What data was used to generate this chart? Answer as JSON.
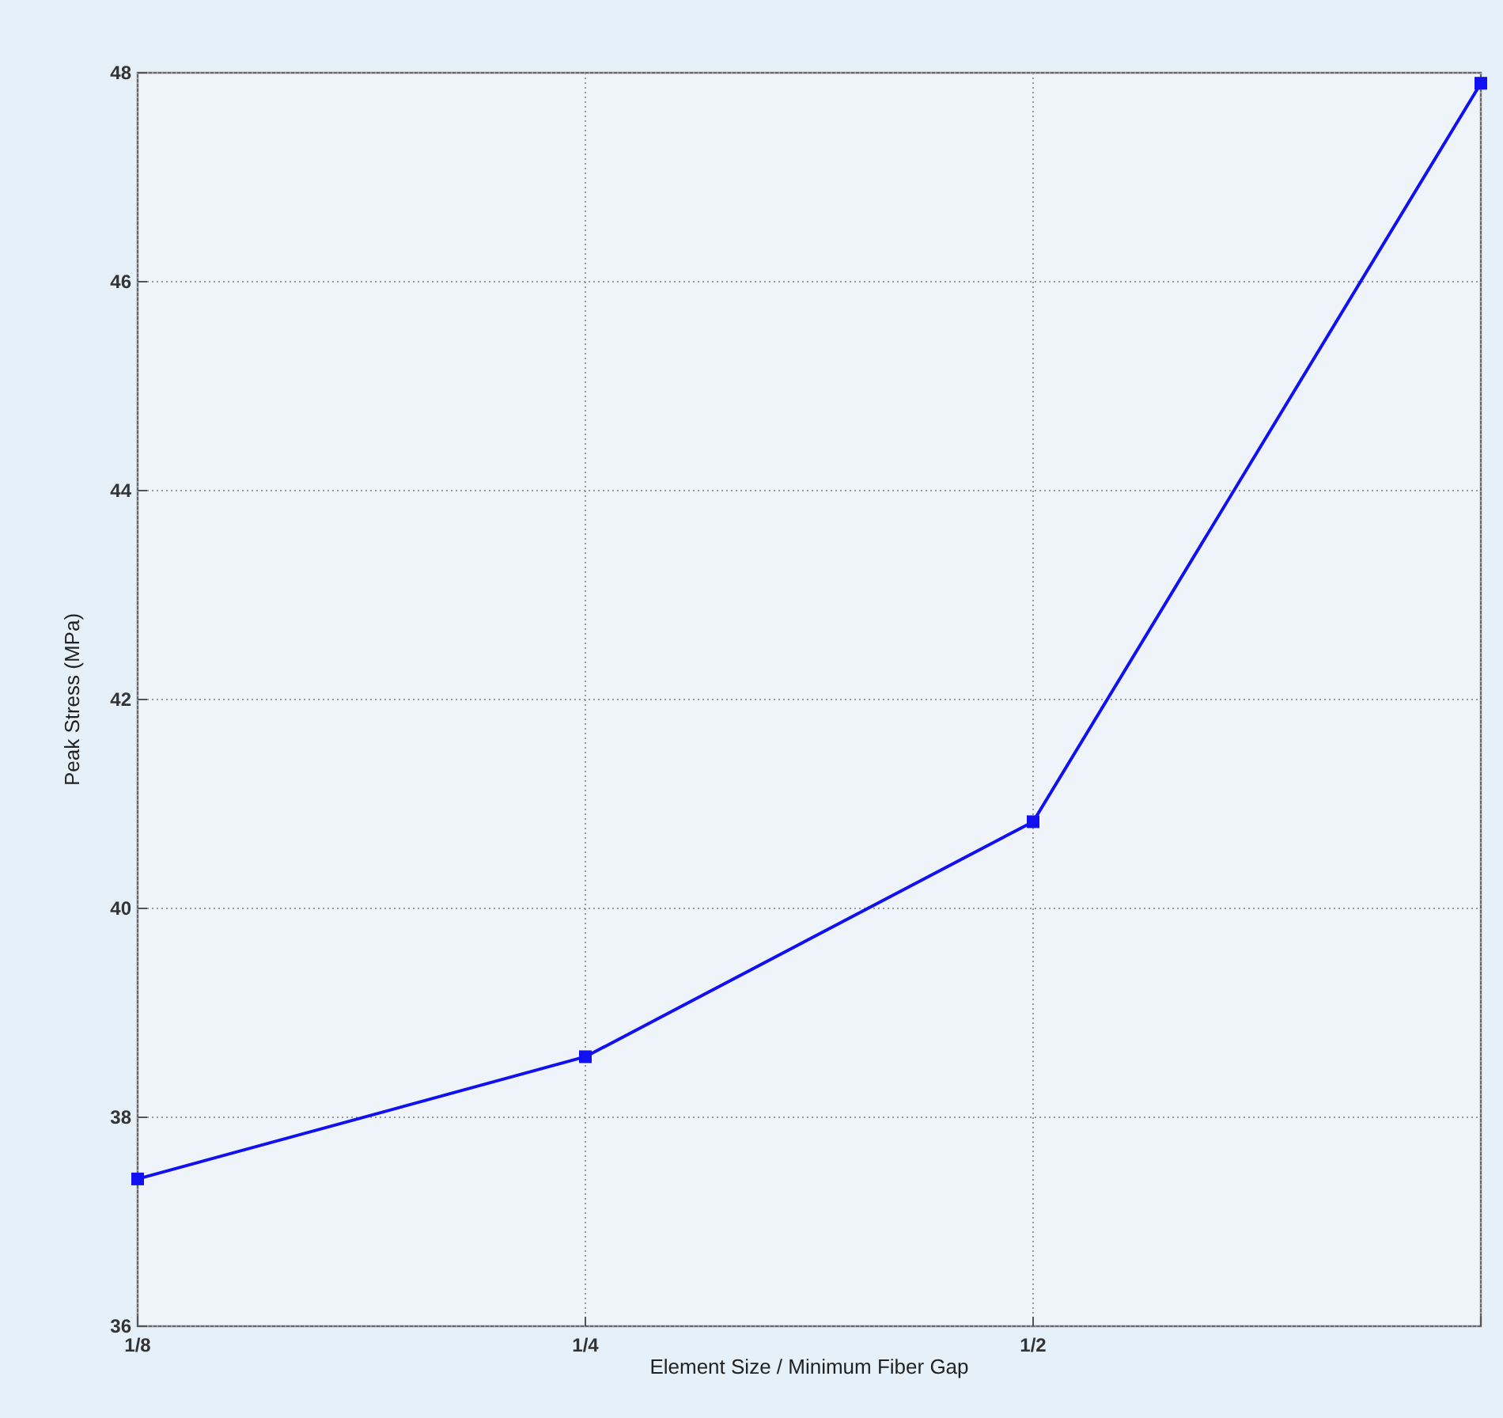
{
  "chart_data": {
    "type": "line",
    "xlabel": "Element Size / Minimum Fiber Gap",
    "ylabel": "Peak Stress (MPa)",
    "categories": [
      "1/8",
      "1/4",
      "1/2",
      null
    ],
    "series": [
      {
        "color": "#1010f0",
        "values": [
          37.41,
          38.58,
          40.83,
          47.9
        ]
      }
    ],
    "ylim": [
      36,
      48
    ],
    "yticks": [
      36,
      38,
      40,
      42,
      44,
      46,
      48
    ],
    "grid": true,
    "marker": "square",
    "line_style": "solid"
  }
}
